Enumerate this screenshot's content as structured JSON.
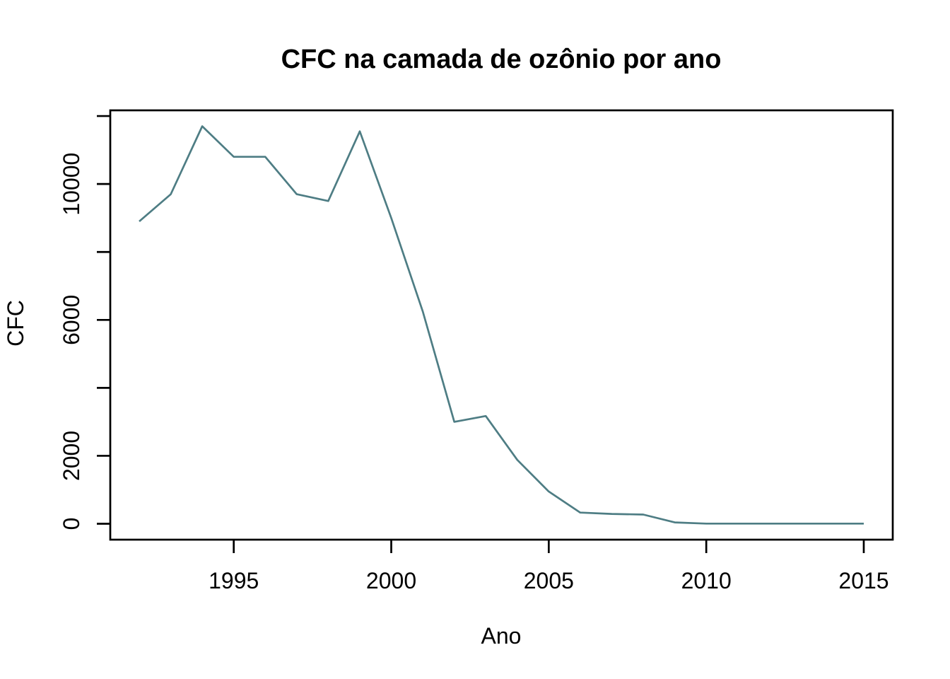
{
  "page": {
    "background_color": "#ffffff"
  },
  "chart_data": {
    "type": "line",
    "title": "CFC na camada de ozônio por ano",
    "xlabel": "Ano",
    "ylabel": "CFC",
    "series": [
      {
        "name": "CFC",
        "x": [
          1992,
          1993,
          1994,
          1995,
          1996,
          1997,
          1998,
          1999,
          2000,
          2001,
          2002,
          2003,
          2004,
          2005,
          2006,
          2007,
          2008,
          2009,
          2010,
          2011,
          2012,
          2013,
          2014,
          2015
        ],
        "values": [
          8900,
          9700,
          11700,
          10800,
          10800,
          9700,
          9500,
          11550,
          9000,
          6250,
          3000,
          3170,
          1880,
          950,
          330,
          290,
          270,
          40,
          5,
          5,
          5,
          5,
          5,
          5
        ]
      }
    ],
    "line_color": "#4e7d84",
    "axis_color": "#000000",
    "text_color": "#000000",
    "xlim": [
      1992,
      2015
    ],
    "ylim": [
      0,
      11700
    ],
    "axis_padding_frac": 0.04,
    "x_ticks": [
      1995,
      2000,
      2005,
      2010,
      2015
    ],
    "x_tick_labels": [
      "1995",
      "2000",
      "2005",
      "2010",
      "2015"
    ],
    "y_ticks": [
      0,
      2000,
      4000,
      6000,
      8000,
      10000,
      12000
    ],
    "y_tick_labels": [
      "0",
      "2000",
      "",
      "6000",
      "",
      "10000",
      ""
    ],
    "y_tick_labels_rotated": true,
    "grid": false,
    "legend_position": "none"
  }
}
